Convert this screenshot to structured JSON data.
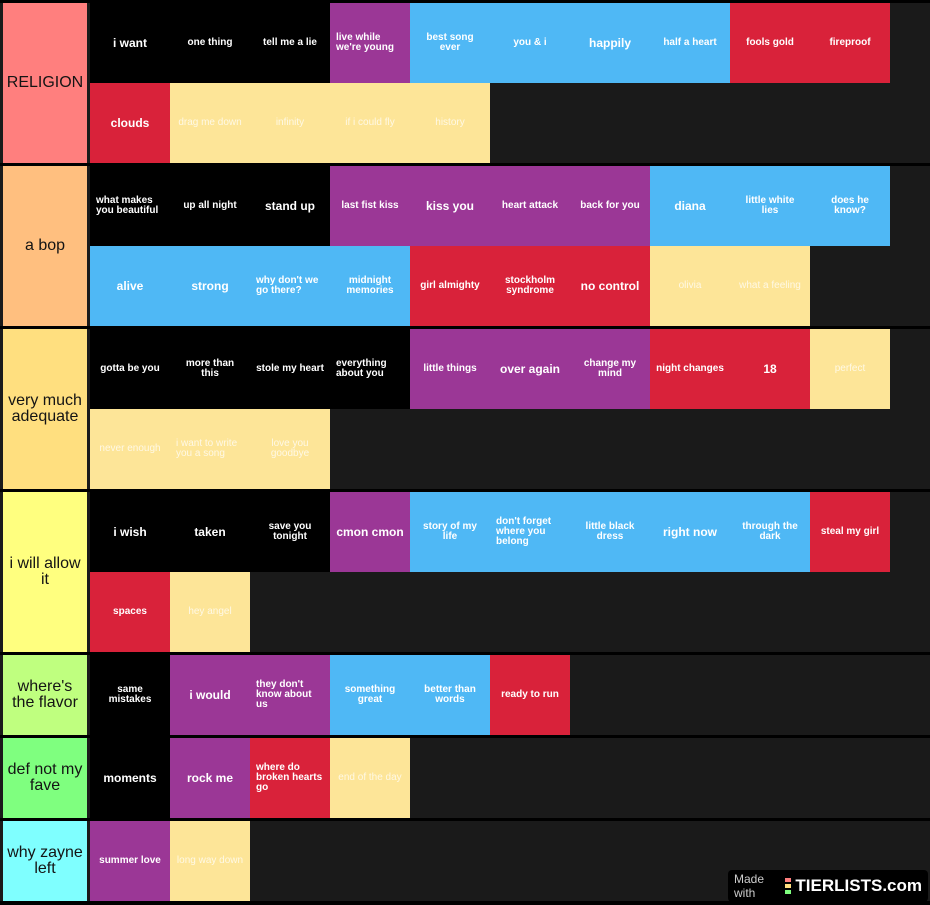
{
  "colors": {
    "background": "#000000",
    "row_background": "#1a1a1a",
    "black": "#000000",
    "purple": "#9b3796",
    "blue": "#4fb8f5",
    "red": "#d9223a",
    "yellow": "#fde598"
  },
  "tiers": [
    {
      "label": "RELIGION",
      "color": "#ff7f7e",
      "items": [
        {
          "text": "i want",
          "color": "black"
        },
        {
          "text": "one thing",
          "color": "black"
        },
        {
          "text": "tell me a lie",
          "color": "black"
        },
        {
          "text": "live while we're young",
          "color": "purple"
        },
        {
          "text": "best song ever",
          "color": "blue"
        },
        {
          "text": "you & i",
          "color": "blue"
        },
        {
          "text": "happily",
          "color": "blue"
        },
        {
          "text": "half a heart",
          "color": "blue"
        },
        {
          "text": "fools gold",
          "color": "red"
        },
        {
          "text": "fireproof",
          "color": "red"
        },
        {
          "text": "clouds",
          "color": "red"
        },
        {
          "text": "drag me down",
          "color": "yellow"
        },
        {
          "text": "infinity",
          "color": "yellow"
        },
        {
          "text": "if i could fly",
          "color": "yellow"
        },
        {
          "text": "history",
          "color": "yellow"
        }
      ]
    },
    {
      "label": "a bop",
      "color": "#ffbf7f",
      "items": [
        {
          "text": "what makes you beautiful",
          "color": "black"
        },
        {
          "text": "up all night",
          "color": "black"
        },
        {
          "text": "stand up",
          "color": "black"
        },
        {
          "text": "last fist kiss",
          "color": "purple"
        },
        {
          "text": "kiss you",
          "color": "purple"
        },
        {
          "text": "heart attack",
          "color": "purple"
        },
        {
          "text": "back for you",
          "color": "purple"
        },
        {
          "text": "diana",
          "color": "blue"
        },
        {
          "text": "little white lies",
          "color": "blue"
        },
        {
          "text": "does he know?",
          "color": "blue"
        },
        {
          "text": "alive",
          "color": "blue"
        },
        {
          "text": "strong",
          "color": "blue"
        },
        {
          "text": "why don't we go there?",
          "color": "blue"
        },
        {
          "text": "midnight memories",
          "color": "blue"
        },
        {
          "text": "girl almighty",
          "color": "red"
        },
        {
          "text": "stockholm syndrome",
          "color": "red"
        },
        {
          "text": "no control",
          "color": "red"
        },
        {
          "text": "olivia",
          "color": "yellow"
        },
        {
          "text": "what a feeling",
          "color": "yellow"
        }
      ]
    },
    {
      "label": "very much adequate",
      "color": "#ffdf7f",
      "items": [
        {
          "text": "gotta be you",
          "color": "black"
        },
        {
          "text": "more than this",
          "color": "black"
        },
        {
          "text": "stole my heart",
          "color": "black"
        },
        {
          "text": "everything about you",
          "color": "black"
        },
        {
          "text": "little things",
          "color": "purple"
        },
        {
          "text": "over again",
          "color": "purple"
        },
        {
          "text": "change my mind",
          "color": "purple"
        },
        {
          "text": "night changes",
          "color": "red"
        },
        {
          "text": "18",
          "color": "red"
        },
        {
          "text": "perfect",
          "color": "yellow"
        },
        {
          "text": "never enough",
          "color": "yellow"
        },
        {
          "text": "i want to write you a song",
          "color": "yellow"
        },
        {
          "text": "love you goodbye",
          "color": "yellow"
        }
      ]
    },
    {
      "label": "i will allow it",
      "color": "#ffff7f",
      "items": [
        {
          "text": "i wish",
          "color": "black"
        },
        {
          "text": "taken",
          "color": "black"
        },
        {
          "text": "save you tonight",
          "color": "black"
        },
        {
          "text": "cmon cmon",
          "color": "purple"
        },
        {
          "text": "story of my life",
          "color": "blue"
        },
        {
          "text": "don't forget where you belong",
          "color": "blue"
        },
        {
          "text": "little black dress",
          "color": "blue"
        },
        {
          "text": "right now",
          "color": "blue"
        },
        {
          "text": "through the dark",
          "color": "blue"
        },
        {
          "text": "steal my girl",
          "color": "red"
        },
        {
          "text": "spaces",
          "color": "red"
        },
        {
          "text": "hey angel",
          "color": "yellow"
        }
      ]
    },
    {
      "label": "where's the flavor",
      "color": "#bfff7f",
      "items": [
        {
          "text": "same mistakes",
          "color": "black"
        },
        {
          "text": "i would",
          "color": "purple"
        },
        {
          "text": "they don't know about us",
          "color": "purple"
        },
        {
          "text": "something great",
          "color": "blue"
        },
        {
          "text": "better than words",
          "color": "blue"
        },
        {
          "text": "ready to run",
          "color": "red"
        }
      ]
    },
    {
      "label": "def not my fave",
      "color": "#7fff7f",
      "items": [
        {
          "text": "moments",
          "color": "black"
        },
        {
          "text": "rock me",
          "color": "purple"
        },
        {
          "text": "where do broken hearts go",
          "color": "red"
        },
        {
          "text": "end of the day",
          "color": "yellow"
        }
      ]
    },
    {
      "label": "why zayne left",
      "color": "#7fffff",
      "items": [
        {
          "text": "summer love",
          "color": "purple"
        },
        {
          "text": "long way down",
          "color": "yellow"
        }
      ]
    }
  ],
  "watermark": {
    "made_with": "Made with",
    "brand": "TIERLISTS.com",
    "logo_colors": [
      "#ff7f7e",
      "#ffdf7f",
      "#7fff7f"
    ]
  }
}
